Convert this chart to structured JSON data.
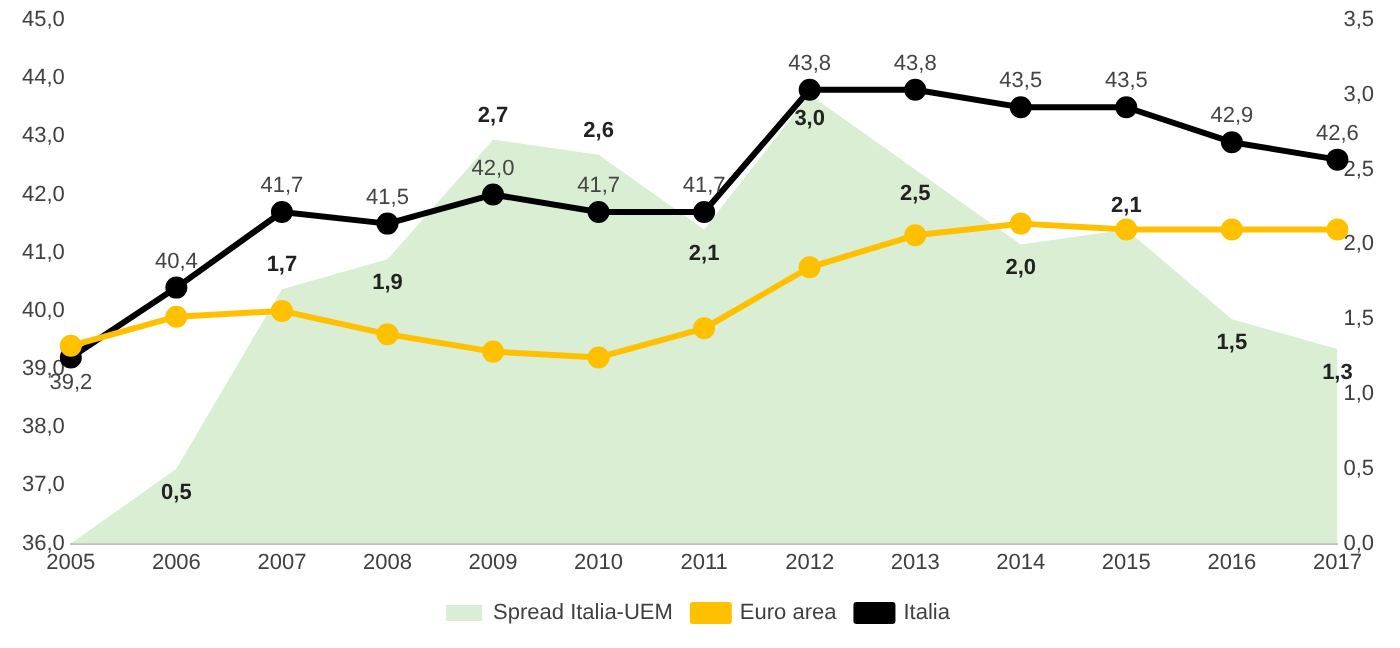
{
  "chart_data": {
    "type": "line",
    "categories": [
      "2005",
      "2006",
      "2007",
      "2008",
      "2009",
      "2010",
      "2011",
      "2012",
      "2013",
      "2014",
      "2015",
      "2016",
      "2017"
    ],
    "series": [
      {
        "name": "Spread Italia-UEM",
        "type": "area",
        "axis": "y2",
        "color": "#d9eed2",
        "values": [
          0,
          0.5,
          1.7,
          1.9,
          2.7,
          2.6,
          2.1,
          3.0,
          2.5,
          2.0,
          2.1,
          1.5,
          1.3
        ],
        "value_labels": [
          null,
          "0,5",
          "1,7",
          "1,9",
          "2,7",
          "2,6",
          "2,1",
          "3,0",
          "2,5",
          "2,0",
          "2,1",
          "1,5",
          "1,3"
        ]
      },
      {
        "name": "Euro area",
        "type": "line",
        "marker": "circle",
        "color": "#ffc000",
        "values": [
          39.4,
          39.9,
          40.0,
          39.6,
          39.3,
          39.2,
          39.7,
          40.75,
          41.3,
          41.5,
          41.4,
          41.4,
          41.4
        ]
      },
      {
        "name": "Italia",
        "type": "line",
        "marker": "circle",
        "color": "#000000",
        "values": [
          39.2,
          40.4,
          41.7,
          41.5,
          42.0,
          41.7,
          41.7,
          43.8,
          43.8,
          43.5,
          43.5,
          42.9,
          42.6
        ],
        "value_labels": [
          "39,2",
          "40,4",
          "41,7",
          "41,5",
          "42,0",
          "41,7",
          "41,7",
          "43,8",
          "43,8",
          "43,5",
          "43,5",
          "42,9",
          "42,6"
        ]
      }
    ],
    "ylim": [
      36,
      45
    ],
    "yticks": [
      {
        "value": 36,
        "label": "36,0"
      },
      {
        "value": 37,
        "label": "37,0"
      },
      {
        "value": 38,
        "label": "38,0"
      },
      {
        "value": 39,
        "label": "39,0"
      },
      {
        "value": 40,
        "label": "40,0"
      },
      {
        "value": 41,
        "label": "41,0"
      },
      {
        "value": 42,
        "label": "42,0"
      },
      {
        "value": 43,
        "label": "43,0"
      },
      {
        "value": 44,
        "label": "44,0"
      },
      {
        "value": 45,
        "label": "45,0"
      }
    ],
    "y2lim": [
      0,
      3.5
    ],
    "y2ticks": [
      {
        "value": 0,
        "label": "0,0"
      },
      {
        "value": 0.5,
        "label": "0,5"
      },
      {
        "value": 1,
        "label": "1,0"
      },
      {
        "value": 1.5,
        "label": "1,5"
      },
      {
        "value": 2,
        "label": "2,0"
      },
      {
        "value": 2.5,
        "label": "2,5"
      },
      {
        "value": 3,
        "label": "3,0"
      },
      {
        "value": 3.5,
        "label": "3,5"
      }
    ],
    "grid": false,
    "legend": "bottom",
    "line_style": "solid"
  }
}
